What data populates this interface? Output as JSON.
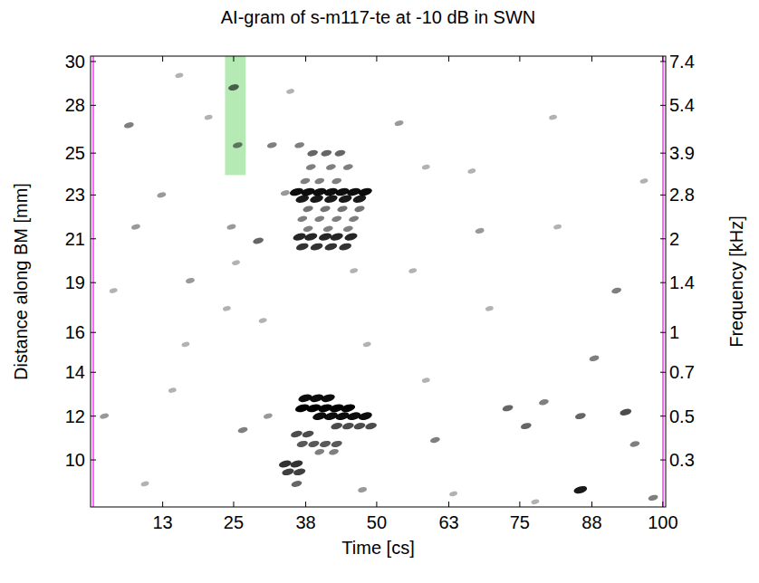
{
  "chart_data": {
    "type": "scatter",
    "title": "AI-gram of s-m117-te at -10 dB in SWN",
    "x_label": "Time [cs]",
    "y_label": "Distance along BM [mm]",
    "y2_label": "Frequency [kHz]",
    "xlim": [
      0,
      100.5
    ],
    "ylim": [
      7.64,
      30.27
    ],
    "y2lim": [
      0.22,
      7.6
    ],
    "xticks": [
      {
        "value": 12.6,
        "label": "13"
      },
      25,
      {
        "value": 37.6,
        "label": "38"
      },
      50,
      {
        "value": 62.6,
        "label": "63"
      },
      75,
      {
        "value": 87.6,
        "label": "88"
      },
      100
    ],
    "yticks": [
      10,
      {
        "value": 12.2,
        "label": "12"
      },
      {
        "value": 14.4,
        "label": "14"
      },
      {
        "value": 16.4,
        "label": "16"
      },
      {
        "value": 18.9,
        "label": "19"
      },
      {
        "value": 21.1,
        "label": "21"
      },
      {
        "value": 23.3,
        "label": "23"
      },
      {
        "value": 25.4,
        "label": "25"
      },
      {
        "value": 27.8,
        "label": "28"
      },
      30
    ],
    "y2ticks": [
      0.3,
      0.5,
      0.7,
      1,
      1.4,
      2,
      2.8,
      3.9,
      5.4,
      7.4
    ],
    "color": "#000000",
    "highlight": {
      "x": [
        23.5,
        27.1
      ],
      "y": [
        24.3,
        30.27
      ],
      "color": "#a8e6a8"
    },
    "x": [
      38.8,
      41.2,
      43.6,
      38.5,
      42,
      45,
      37.5,
      40,
      43,
      36,
      38,
      40,
      42,
      44,
      46,
      48,
      37,
      39.5,
      42,
      44.5,
      47,
      38,
      41,
      44,
      47,
      37,
      40,
      43,
      46,
      38,
      41.5,
      45,
      36.5,
      38.5,
      41,
      43,
      45.5,
      37,
      39.5,
      42,
      44.5,
      34,
      37.5,
      39.5,
      41.5,
      37,
      39,
      41,
      43,
      45,
      40,
      42,
      44,
      46,
      48,
      43,
      45,
      47,
      49,
      36,
      38,
      37,
      39,
      41,
      43,
      40,
      42.5,
      34,
      36,
      34.5,
      36.5,
      36,
      31,
      48.3,
      6.7,
      15.5,
      2.4,
      7.9,
      12.4,
      17.4,
      16.6,
      20.6,
      25,
      25.7,
      24.6,
      25.4,
      23.8,
      26.6,
      29.3,
      31.7,
      30.1,
      34.9,
      53.9,
      58.6,
      56.3,
      58.6,
      60.2,
      66.6,
      68,
      69.7,
      72.9,
      76.1,
      79.2,
      80.8,
      81.6,
      85.6,
      88,
      91.9,
      93.5,
      95.1,
      85.6,
      98.3,
      96.7,
      77.7,
      63.4,
      9.5,
      4,
      14.3,
      46,
      47.5,
      36.5
    ],
    "values": [
      25.4,
      25.4,
      25.4,
      24.7,
      24.7,
      24.7,
      24.0,
      24.0,
      24.0,
      23.45,
      23.45,
      23.45,
      23.45,
      23.45,
      23.45,
      23.45,
      23.1,
      23.1,
      23.1,
      23.1,
      23.1,
      22.6,
      22.6,
      22.6,
      22.6,
      22.1,
      22.1,
      22.1,
      22.1,
      21.6,
      21.6,
      21.6,
      21.2,
      21.2,
      21.2,
      21.2,
      21.2,
      20.7,
      20.7,
      20.7,
      20.7,
      23.4,
      13.1,
      13.1,
      13.1,
      12.6,
      12.6,
      12.6,
      12.6,
      12.6,
      12.2,
      12.2,
      12.2,
      12.2,
      12.2,
      11.7,
      11.7,
      11.7,
      11.7,
      11.3,
      11.3,
      10.8,
      10.8,
      10.8,
      10.8,
      10.4,
      10.4,
      9.8,
      9.8,
      9.4,
      9.4,
      8.8,
      12.2,
      15.8,
      26.8,
      29.3,
      12.2,
      21.7,
      23.3,
      19.0,
      15.8,
      27.2,
      28.7,
      25.8,
      21.7,
      19.9,
      17.6,
      11.5,
      21.0,
      25.8,
      17.0,
      28.5,
      26.9,
      24.7,
      19.5,
      14.0,
      11.0,
      24.5,
      21.5,
      17.6,
      12.6,
      11.7,
      12.9,
      27.2,
      21.7,
      12.2,
      15.1,
      18.5,
      12.4,
      10.8,
      8.5,
      8.1,
      24.0,
      7.9,
      8.3,
      8.8,
      18.5,
      13.5,
      19.5,
      8.5,
      25.8
    ],
    "intensity": [
      0.6,
      0.6,
      0.6,
      0.5,
      0.5,
      0.5,
      0.5,
      0.5,
      0.5,
      0.95,
      0.95,
      0.95,
      0.95,
      0.95,
      0.95,
      0.95,
      0.9,
      0.9,
      0.9,
      0.9,
      0.9,
      0.55,
      0.55,
      0.55,
      0.55,
      0.5,
      0.5,
      0.5,
      0.5,
      0.5,
      0.5,
      0.5,
      0.85,
      0.85,
      0.85,
      0.85,
      0.85,
      0.8,
      0.8,
      0.8,
      0.8,
      0.4,
      0.95,
      0.95,
      0.95,
      1,
      1,
      1,
      1,
      1,
      0.95,
      0.95,
      0.95,
      0.95,
      0.95,
      0.7,
      0.7,
      0.7,
      0.7,
      0.7,
      0.7,
      0.65,
      0.65,
      0.65,
      0.65,
      0.5,
      0.5,
      0.8,
      0.8,
      0.75,
      0.75,
      0.6,
      0.4,
      0.3,
      0.5,
      0.3,
      0.4,
      0.4,
      0.4,
      0.4,
      0.3,
      0.3,
      0.6,
      0.5,
      0.4,
      0.3,
      0.3,
      0.5,
      0.6,
      0.5,
      0.3,
      0.3,
      0.4,
      0.3,
      0.3,
      0.3,
      0.5,
      0.3,
      0.4,
      0.3,
      0.6,
      0.6,
      0.5,
      0.3,
      0.3,
      0.6,
      0.5,
      0.5,
      0.7,
      0.5,
      0.9,
      0.5,
      0.3,
      0.3,
      0.3,
      0.3,
      0.3,
      0.3,
      0.3,
      0.4,
      0.5
    ]
  }
}
